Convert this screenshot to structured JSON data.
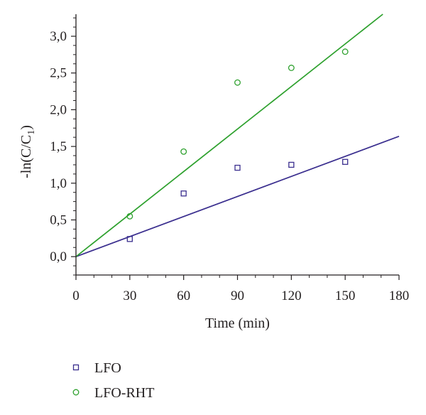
{
  "chart_data": {
    "type": "scatter",
    "xlabel": "Time (min)",
    "ylabel": {
      "prefix": "-ln(C/C",
      "subscript": "1",
      "suffix": ")"
    },
    "xlim": [
      0,
      180
    ],
    "ylim": [
      -0.25,
      3.3
    ],
    "x_ticks": [
      0,
      30,
      60,
      90,
      120,
      150,
      180
    ],
    "x_tick_labels": [
      "0",
      "30",
      "60",
      "90",
      "120",
      "150",
      "180"
    ],
    "y_ticks": [
      0,
      0.5,
      1.0,
      1.5,
      2.0,
      2.5,
      3.0
    ],
    "y_tick_labels": [
      "0,0",
      "0,5",
      "1,0",
      "1,5",
      "2,0",
      "2,5",
      "3,0"
    ],
    "grid": false,
    "legend_position": "bottom-left",
    "series": [
      {
        "name": "LFO",
        "marker": "square",
        "color": "#3b2f8f",
        "x": [
          30,
          60,
          90,
          120,
          150
        ],
        "y": [
          0.24,
          0.86,
          1.21,
          1.25,
          1.29
        ],
        "fit": {
          "slope": 0.0091,
          "intercept": 0.0
        }
      },
      {
        "name": "LFO-RHT",
        "marker": "circle",
        "color": "#2ea12e",
        "x": [
          30,
          60,
          90,
          120,
          150
        ],
        "y": [
          0.55,
          1.43,
          2.37,
          2.57,
          2.79
        ],
        "fit": {
          "slope": 0.0193,
          "intercept": 0.0
        }
      }
    ]
  }
}
